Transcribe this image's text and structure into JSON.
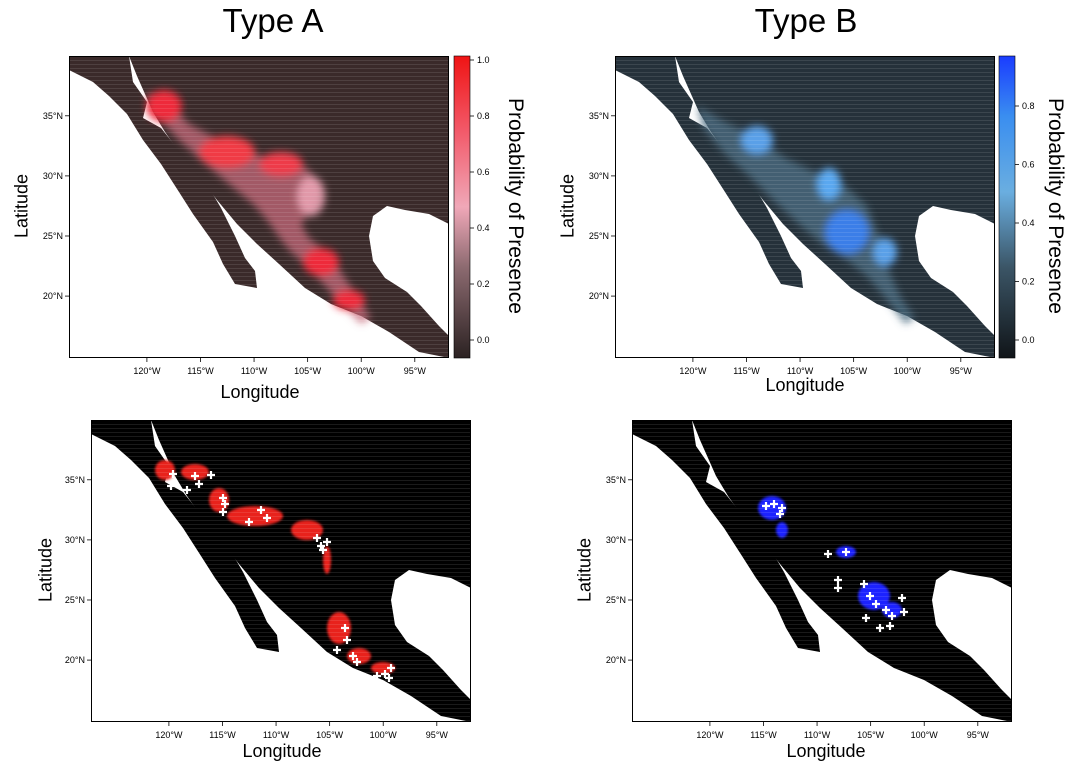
{
  "columns": [
    {
      "title": "Type A",
      "cmap": "red"
    },
    {
      "title": "Type B",
      "cmap": "blue"
    }
  ],
  "axes": {
    "xlabel": "Longitude",
    "ylabel": "Latitude",
    "x_ticks": [
      "120°W",
      "115°W",
      "110°W",
      "105°W",
      "100°W",
      "95°W"
    ],
    "y_ticks": [
      "35°N",
      "30°N",
      "25°N",
      "20°N"
    ]
  },
  "colorbar": {
    "label": "Probability of Presence",
    "A_ticks": [
      "1.0",
      "0.8",
      "0.6",
      "0.4",
      "0.2",
      "0.0"
    ],
    "B_ticks": [
      "0.8",
      "0.6",
      "0.4",
      "0.2",
      "0.0"
    ]
  },
  "colors": {
    "land_dark_A": "#3a2a2a",
    "land_dark_B": "#25313a",
    "binary_land": "#000000",
    "presence_red": "#e8201c",
    "presence_blue": "#1a22ff",
    "marker": "#ffffff"
  }
}
